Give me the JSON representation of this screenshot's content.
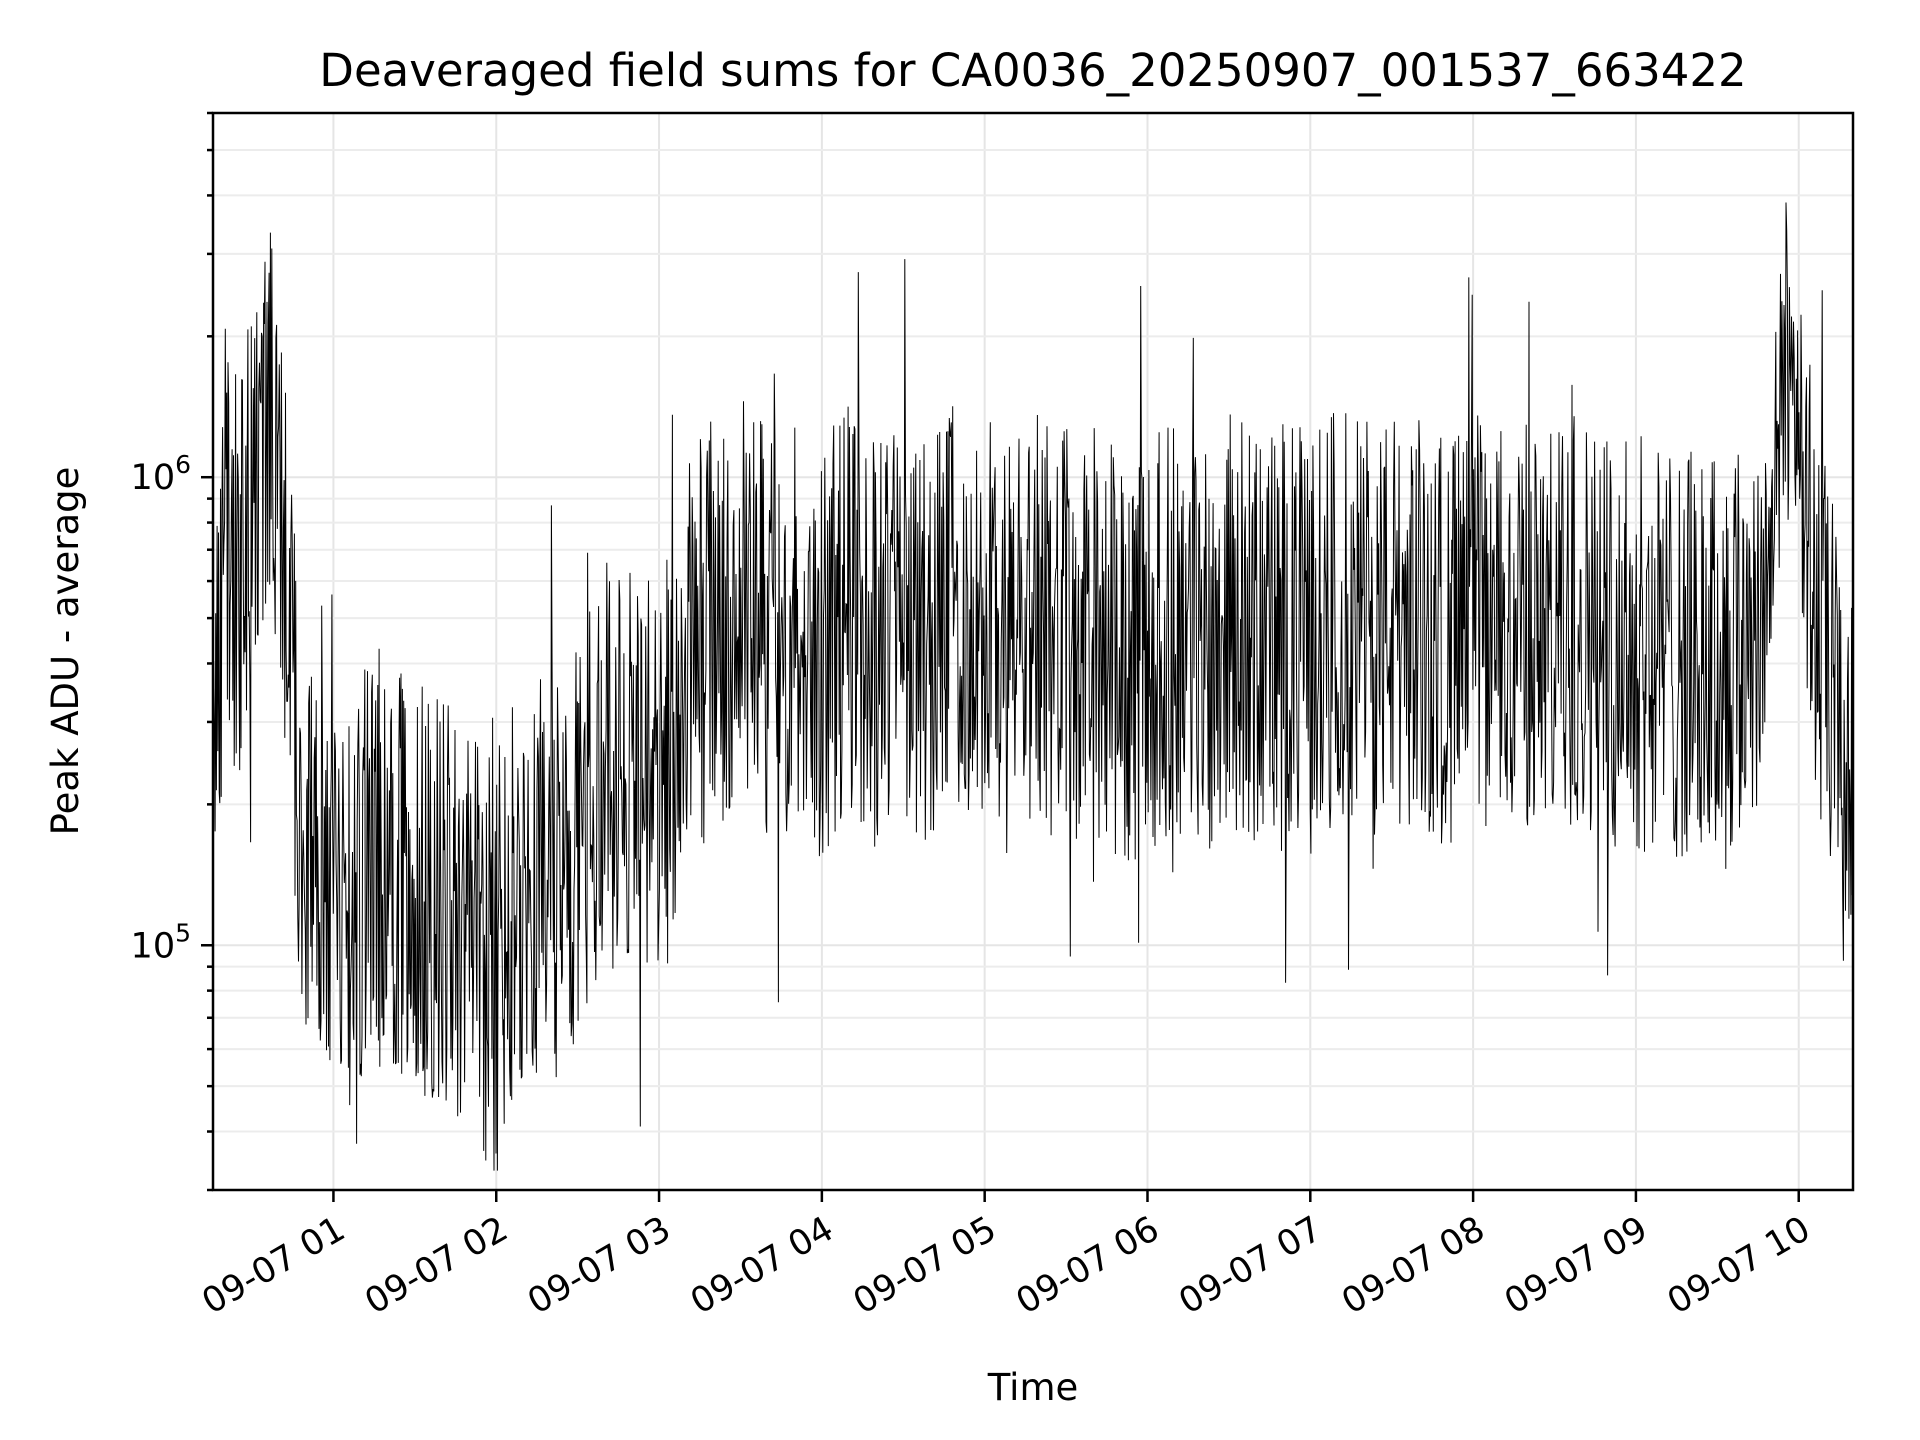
{
  "chart_data": {
    "type": "line",
    "title": "Deaveraged field sums for CA0036_20250907_001537_663422",
    "xlabel": "Time",
    "ylabel": "Peak ADU - average",
    "y_scale": "log",
    "ylim": [
      30000,
      6000000
    ],
    "xlim": [
      "09-07 00:15:37",
      "09-07 10:20"
    ],
    "x_tick_labels": [
      "09-07 01",
      "09-07 02",
      "09-07 03",
      "09-07 04",
      "09-07 05",
      "09-07 06",
      "09-07 07",
      "09-07 08",
      "09-07 09",
      "09-07 10"
    ],
    "y_tick_labels": [
      {
        "base": "10",
        "exp": "5",
        "value": 100000
      },
      {
        "base": "10",
        "exp": "6",
        "value": 1000000
      }
    ],
    "grid": true,
    "legend": "none",
    "series": [
      {
        "color": "#000000",
        "points": [
          [
            "00:15:37",
            250000
          ],
          [
            "00:20",
            850000
          ],
          [
            "00:25",
            550000
          ],
          [
            "00:30",
            1000000
          ],
          [
            "00:35",
            1500000
          ],
          [
            "00:40",
            900000
          ],
          [
            "00:45",
            320000
          ],
          [
            "00:50",
            160000
          ],
          [
            "00:55",
            120000
          ],
          [
            "01:00",
            110000
          ],
          [
            "01:10",
            140000
          ],
          [
            "01:20",
            160000
          ],
          [
            "01:30",
            130000
          ],
          [
            "01:40",
            120000
          ],
          [
            "01:50",
            110000
          ],
          [
            "02:00",
            90000
          ],
          [
            "02:10",
            150000
          ],
          [
            "02:20",
            140000
          ],
          [
            "02:30",
            170000
          ],
          [
            "02:40",
            240000
          ],
          [
            "02:50",
            260000
          ],
          [
            "03:00",
            200000
          ],
          [
            "03:10",
            420000
          ],
          [
            "03:20",
            480000
          ],
          [
            "03:30",
            600000
          ],
          [
            "03:40",
            430000
          ],
          [
            "03:50",
            500000
          ],
          [
            "04:00",
            420000
          ],
          [
            "04:10",
            550000
          ],
          [
            "04:20",
            450000
          ],
          [
            "04:30",
            520000
          ],
          [
            "04:40",
            460000
          ],
          [
            "04:50",
            520000
          ],
          [
            "05:00",
            480000
          ],
          [
            "05:10",
            430000
          ],
          [
            "05:20",
            500000
          ],
          [
            "05:30",
            450000
          ],
          [
            "05:40",
            470000
          ],
          [
            "05:50",
            400000
          ],
          [
            "06:00",
            420000
          ],
          [
            "06:10",
            480000
          ],
          [
            "06:20",
            430000
          ],
          [
            "06:30",
            500000
          ],
          [
            "06:40",
            450000
          ],
          [
            "06:50",
            480000
          ],
          [
            "07:00",
            440000
          ],
          [
            "07:10",
            520000
          ],
          [
            "07:20",
            470000
          ],
          [
            "07:30",
            500000
          ],
          [
            "07:40",
            480000
          ],
          [
            "07:50",
            450000
          ],
          [
            "08:00",
            500000
          ],
          [
            "08:10",
            460000
          ],
          [
            "08:20",
            480000
          ],
          [
            "08:30",
            450000
          ],
          [
            "08:40",
            500000
          ],
          [
            "08:50",
            460000
          ],
          [
            "09:00",
            440000
          ],
          [
            "09:10",
            430000
          ],
          [
            "09:20",
            410000
          ],
          [
            "09:30",
            400000
          ],
          [
            "09:40",
            420000
          ],
          [
            "09:50",
            700000
          ],
          [
            "09:55",
            1800000
          ],
          [
            "10:00",
            1500000
          ],
          [
            "10:05",
            550000
          ],
          [
            "10:10",
            400000
          ],
          [
            "10:15",
            260000
          ],
          [
            "10:20",
            180000
          ]
        ]
      }
    ]
  }
}
